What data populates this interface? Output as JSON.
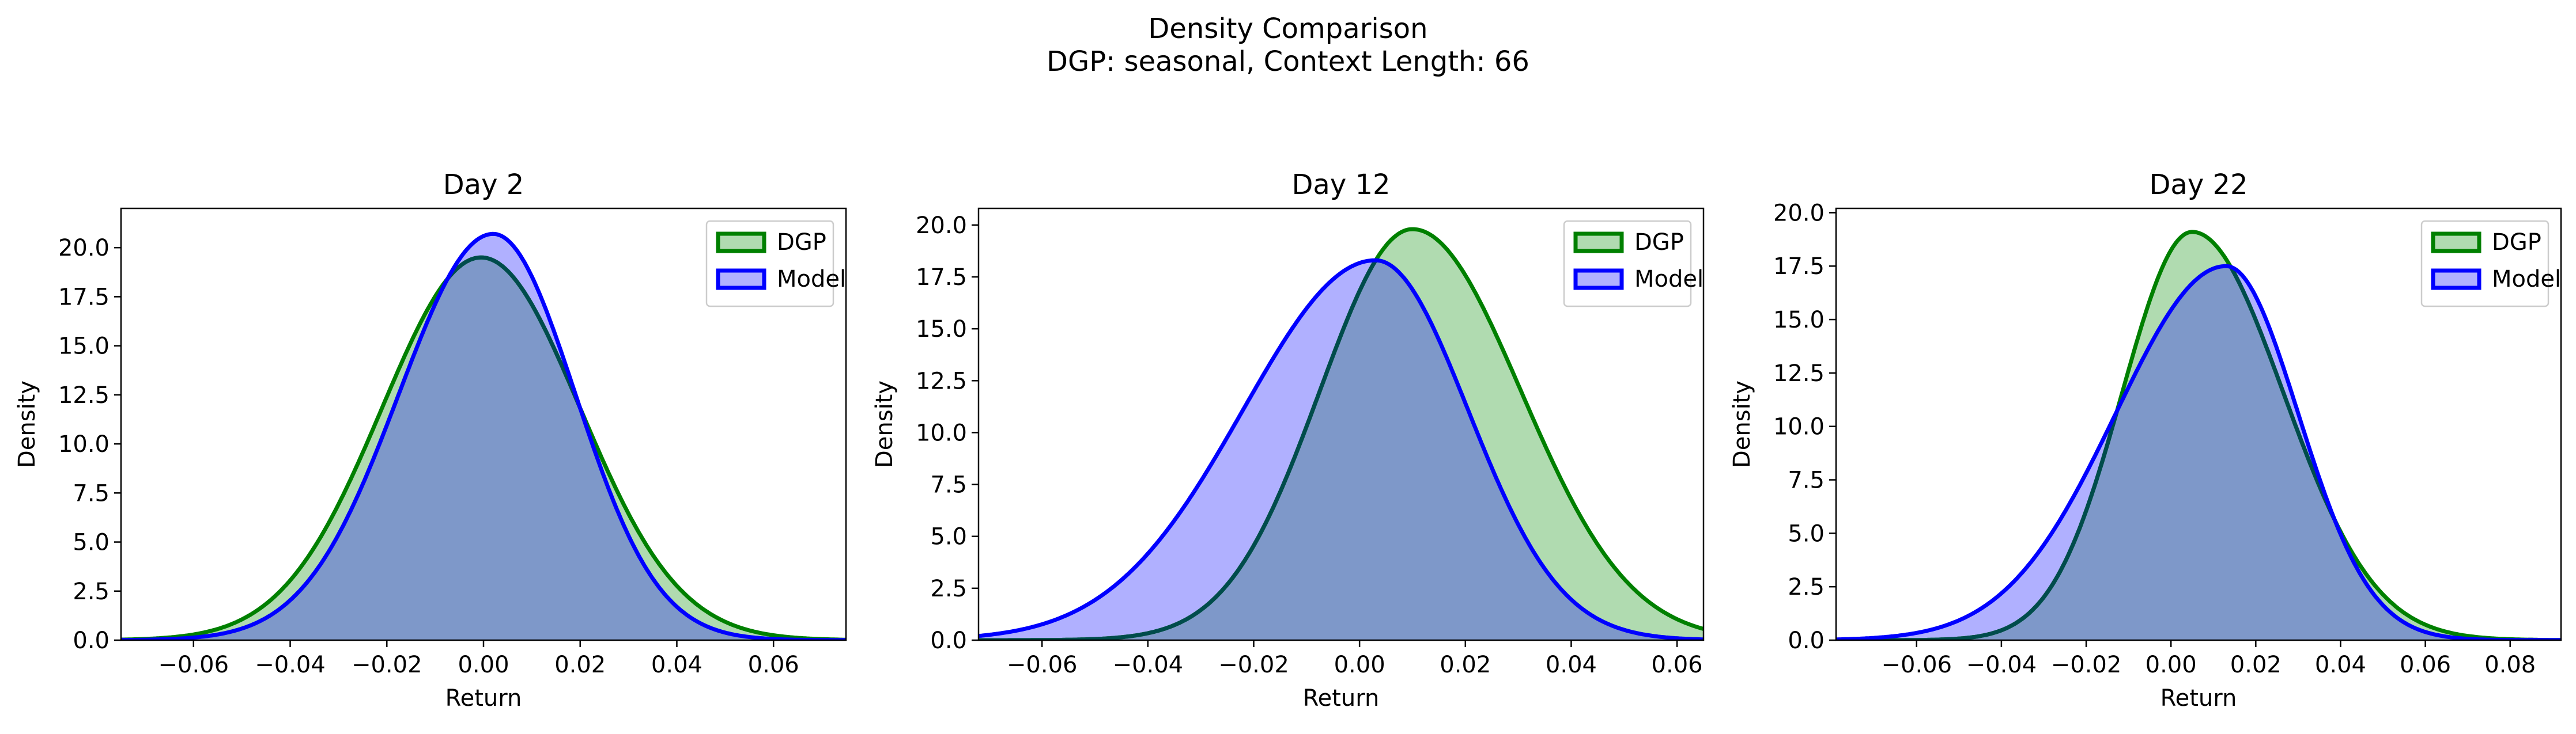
{
  "figure": {
    "title": "Density Comparison",
    "subtitle": "DGP: seasonal, Context Length: 66"
  },
  "colors": {
    "dgp_line": "#008000",
    "dgp_fill": "#b0dbb0",
    "model_line": "#0000ff",
    "model_fill": "#b0b0ff",
    "overlap_fill": "#7e98c9",
    "overlap_line": "#004c4c"
  },
  "chart_data": [
    {
      "type": "area",
      "title": "Day 2",
      "xlabel": "Return",
      "ylabel": "Density",
      "xlim": [
        -0.075,
        0.075
      ],
      "ylim": [
        0,
        22
      ],
      "xticks": [
        -0.06,
        -0.04,
        -0.02,
        0.0,
        0.02,
        0.04,
        0.06
      ],
      "xtick_labels": [
        "−0.06",
        "−0.04",
        "−0.02",
        "0.00",
        "0.02",
        "0.04",
        "0.06"
      ],
      "yticks": [
        0,
        2.5,
        5,
        7.5,
        10,
        12.5,
        15,
        17.5,
        20
      ],
      "ytick_labels": [
        "0.0",
        "2.5",
        "5.0",
        "7.5",
        "10.0",
        "12.5",
        "15.0",
        "17.5",
        "20.0"
      ],
      "legend": {
        "position": "top-right",
        "entries": [
          "DGP",
          "Model"
        ]
      },
      "series": [
        {
          "name": "DGP",
          "peak_x": -0.0005,
          "peak_y": 19.5,
          "sigma_left": 0.0205,
          "sigma_right": 0.0205
        },
        {
          "name": "Model",
          "peak_x": 0.002,
          "peak_y": 20.7,
          "sigma_left": 0.0195,
          "sigma_right": 0.017
        }
      ]
    },
    {
      "type": "area",
      "title": "Day 12",
      "xlabel": "Return",
      "ylabel": "Density",
      "xlim": [
        -0.072,
        0.065
      ],
      "ylim": [
        0,
        20.8
      ],
      "xticks": [
        -0.06,
        -0.04,
        -0.02,
        0.0,
        0.02,
        0.04,
        0.06
      ],
      "xtick_labels": [
        "−0.06",
        "−0.04",
        "−0.02",
        "0.00",
        "0.02",
        "0.04",
        "0.06"
      ],
      "yticks": [
        0,
        2.5,
        5,
        7.5,
        10,
        12.5,
        15,
        17.5,
        20
      ],
      "ytick_labels": [
        "0.0",
        "2.5",
        "5.0",
        "7.5",
        "10.0",
        "12.5",
        "15.0",
        "17.5",
        "20.0"
      ],
      "legend": {
        "position": "top-right",
        "entries": [
          "DGP",
          "Model"
        ]
      },
      "series": [
        {
          "name": "DGP",
          "peak_x": 0.01,
          "peak_y": 19.8,
          "sigma_left": 0.0175,
          "sigma_right": 0.0205
        },
        {
          "name": "Model",
          "peak_x": 0.003,
          "peak_y": 18.3,
          "sigma_left": 0.025,
          "sigma_right": 0.0175
        }
      ]
    },
    {
      "type": "area",
      "title": "Day 22",
      "xlabel": "Return",
      "ylabel": "Density",
      "xlim": [
        -0.079,
        0.092
      ],
      "ylim": [
        0,
        20.2
      ],
      "xticks": [
        -0.06,
        -0.04,
        -0.02,
        0.0,
        0.02,
        0.04,
        0.06,
        0.08
      ],
      "xtick_labels": [
        "−0.06",
        "−0.04",
        "−0.02",
        "0.00",
        "0.02",
        "0.04",
        "0.06",
        "0.08"
      ],
      "yticks": [
        0,
        2.5,
        5,
        7.5,
        10,
        12.5,
        15,
        17.5,
        20
      ],
      "ytick_labels": [
        "0.0",
        "2.5",
        "5.0",
        "7.5",
        "10.0",
        "12.5",
        "15.0",
        "17.5",
        "20.0"
      ],
      "legend": {
        "position": "top-right",
        "entries": [
          "DGP",
          "Model"
        ]
      },
      "series": [
        {
          "name": "DGP",
          "peak_x": 0.005,
          "peak_y": 19.1,
          "sigma_left": 0.0165,
          "sigma_right": 0.0215
        },
        {
          "name": "Model",
          "peak_x": 0.013,
          "peak_y": 17.5,
          "sigma_left": 0.026,
          "sigma_right": 0.017
        }
      ]
    }
  ]
}
